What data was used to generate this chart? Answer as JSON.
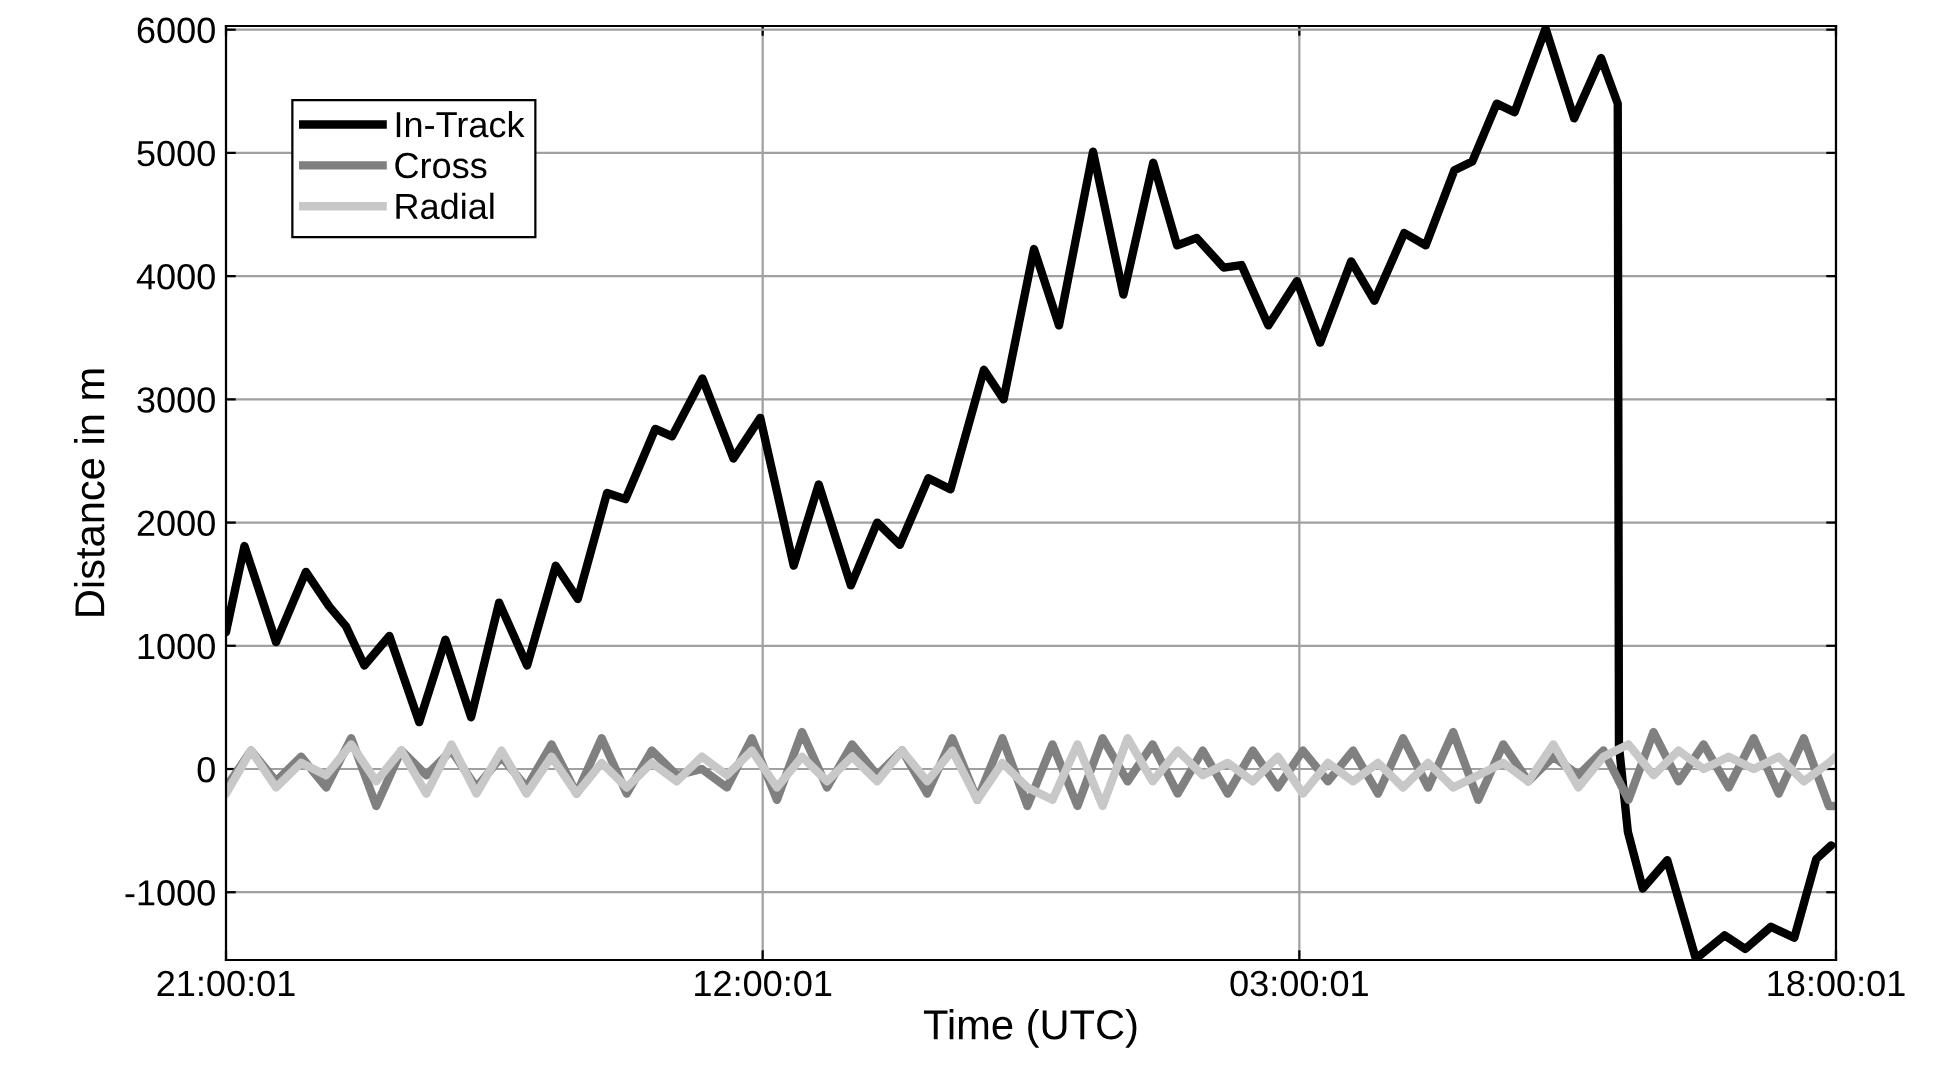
{
  "chart_data": {
    "type": "line",
    "xlabel": "Time (UTC)",
    "ylabel": "Distance in m",
    "xlim": [
      "2000-01-01T21:00:01",
      "2000-01-03T18:00:01"
    ],
    "xticks": [
      {
        "value": "2000-01-01T21:00:01",
        "label": "21:00:01"
      },
      {
        "value": "2000-01-02T12:00:01",
        "label": "12:00:01"
      },
      {
        "value": "2000-01-03T03:00:01",
        "label": "03:00:01"
      },
      {
        "value": "2000-01-03T18:00:01",
        "label": "18:00:01"
      }
    ],
    "ylim": [
      -1550,
      6030
    ],
    "yticks": [
      -1000,
      0,
      1000,
      2000,
      3000,
      4000,
      5000,
      6000
    ],
    "grid": true,
    "legend": "top left",
    "line_style": "solid",
    "marker": "none",
    "series": [
      {
        "name": "In-Track",
        "color": "#000000",
        "x": [
          "2000-01-01T21:00:01",
          "2000-01-01T21:31",
          "2000-01-01T22:24",
          "2000-01-01T23:14",
          "2000-01-01T23:53",
          "2000-01-02T00:21",
          "2000-01-02T00:52",
          "2000-01-02T01:34",
          "2000-01-02T02:24",
          "2000-01-02T03:08",
          "2000-01-02T03:51",
          "2000-01-02T04:38",
          "2000-01-02T05:25",
          "2000-01-02T06:13",
          "2000-01-02T06:50",
          "2000-01-02T07:39",
          "2000-01-02T08:10",
          "2000-01-02T09:00",
          "2000-01-02T09:28",
          "2000-01-02T10:19",
          "2000-01-02T11:11",
          "2000-01-02T11:56",
          "2000-01-02T12:52",
          "2000-01-02T13:34",
          "2000-01-02T14:28",
          "2000-01-02T15:12",
          "2000-01-02T15:50",
          "2000-01-02T16:38",
          "2000-01-02T17:15",
          "2000-01-02T18:11",
          "2000-01-02T18:44",
          "2000-01-02T19:35",
          "2000-01-02T20:17",
          "2000-01-02T21:14",
          "2000-01-02T22:05",
          "2000-01-02T22:55",
          "2000-01-02T23:35",
          "2000-01-03T00:08",
          "2000-01-03T00:53",
          "2000-01-03T01:23",
          "2000-01-03T02:08",
          "2000-01-03T02:56",
          "2000-01-03T03:35",
          "2000-01-03T04:27",
          "2000-01-03T05:06",
          "2000-01-03T05:56",
          "2000-01-03T06:32",
          "2000-01-03T07:20",
          "2000-01-03T07:50",
          "2000-01-03T08:31",
          "2000-01-03T09:01",
          "2000-01-03T09:53",
          "2000-01-03T10:41",
          "2000-01-03T11:26",
          "2000-01-03T11:54",
          "2000-01-03T11:56",
          "2000-01-03T12:11",
          "2000-01-03T12:36",
          "2000-01-03T13:17",
          "2000-01-03T14:05",
          "2000-01-03T14:53",
          "2000-01-03T15:28",
          "2000-01-03T16:11",
          "2000-01-03T16:50",
          "2000-01-03T17:27",
          "2000-01-03T17:52"
        ],
        "values": [
          1110,
          1810,
          1030,
          1600,
          1320,
          1160,
          840,
          1080,
          380,
          1050,
          420,
          1350,
          840,
          1650,
          1380,
          2240,
          2190,
          2760,
          2700,
          3170,
          2520,
          2850,
          1650,
          2310,
          1490,
          2000,
          1820,
          2360,
          2270,
          3240,
          3000,
          4220,
          3600,
          5010,
          3850,
          4920,
          4250,
          4310,
          4070,
          4090,
          3600,
          3960,
          3460,
          4120,
          3800,
          4350,
          4250,
          4860,
          4930,
          5400,
          5330,
          6010,
          5280,
          5770,
          5400,
          190,
          -510,
          -970,
          -740,
          -1540,
          -1350,
          -1460,
          -1280,
          -1370,
          -730,
          -620
        ]
      },
      {
        "name": "Cross",
        "color": "#808080",
        "x": [
          "2000-01-01T21:00:01",
          "2000-01-01T21:42",
          "2000-01-01T22:24",
          "2000-01-01T23:06",
          "2000-01-01T23:48",
          "2000-01-02T00:30",
          "2000-01-02T01:12",
          "2000-01-02T01:54",
          "2000-01-02T02:36",
          "2000-01-02T03:18",
          "2000-01-02T04:00",
          "2000-01-02T04:42",
          "2000-01-02T05:24",
          "2000-01-02T06:06",
          "2000-01-02T06:48",
          "2000-01-02T07:30",
          "2000-01-02T08:12",
          "2000-01-02T08:54",
          "2000-01-02T09:36",
          "2000-01-02T10:18",
          "2000-01-02T11:00",
          "2000-01-02T11:42",
          "2000-01-02T12:24",
          "2000-01-02T13:06",
          "2000-01-02T13:48",
          "2000-01-02T14:30",
          "2000-01-02T15:12",
          "2000-01-02T15:54",
          "2000-01-02T16:36",
          "2000-01-02T17:18",
          "2000-01-02T18:00",
          "2000-01-02T18:42",
          "2000-01-02T19:24",
          "2000-01-02T20:06",
          "2000-01-02T20:48",
          "2000-01-02T21:30",
          "2000-01-02T22:12",
          "2000-01-02T22:54",
          "2000-01-02T23:36",
          "2000-01-03T00:18",
          "2000-01-03T01:00",
          "2000-01-03T01:42",
          "2000-01-03T02:24",
          "2000-01-03T03:06",
          "2000-01-03T03:48",
          "2000-01-03T04:30",
          "2000-01-03T05:12",
          "2000-01-03T05:54",
          "2000-01-03T06:36",
          "2000-01-03T07:18",
          "2000-01-03T08:00",
          "2000-01-03T08:42",
          "2000-01-03T09:24",
          "2000-01-03T10:06",
          "2000-01-03T10:48",
          "2000-01-03T11:30",
          "2000-01-03T12:12",
          "2000-01-03T12:54",
          "2000-01-03T13:36",
          "2000-01-03T14:18",
          "2000-01-03T15:00",
          "2000-01-03T15:42",
          "2000-01-03T16:24",
          "2000-01-03T17:06",
          "2000-01-03T17:48",
          "2000-01-03T18:00"
        ],
        "values": [
          -150,
          150,
          -100,
          100,
          -150,
          250,
          -300,
          150,
          -50,
          150,
          -150,
          100,
          -150,
          200,
          -200,
          250,
          -200,
          150,
          -50,
          0,
          -150,
          250,
          -250,
          300,
          -150,
          200,
          -50,
          150,
          -200,
          250,
          -250,
          250,
          -300,
          200,
          -300,
          250,
          -100,
          200,
          -200,
          150,
          -200,
          150,
          -150,
          150,
          -100,
          150,
          -200,
          250,
          -150,
          300,
          -250,
          200,
          -100,
          100,
          -50,
          150,
          -250,
          300,
          -100,
          200,
          -150,
          250,
          -200,
          250,
          -300,
          -300
        ]
      },
      {
        "name": "Radial",
        "color": "#c8c8c8",
        "x": [
          "2000-01-01T21:00:01",
          "2000-01-01T21:42",
          "2000-01-01T22:24",
          "2000-01-01T23:06",
          "2000-01-01T23:48",
          "2000-01-02T00:30",
          "2000-01-02T01:12",
          "2000-01-02T01:54",
          "2000-01-02T02:36",
          "2000-01-02T03:18",
          "2000-01-02T04:00",
          "2000-01-02T04:42",
          "2000-01-02T05:24",
          "2000-01-02T06:06",
          "2000-01-02T06:48",
          "2000-01-02T07:30",
          "2000-01-02T08:12",
          "2000-01-02T08:54",
          "2000-01-02T09:36",
          "2000-01-02T10:18",
          "2000-01-02T11:00",
          "2000-01-02T11:42",
          "2000-01-02T12:24",
          "2000-01-02T13:06",
          "2000-01-02T13:48",
          "2000-01-02T14:30",
          "2000-01-02T15:12",
          "2000-01-02T15:54",
          "2000-01-02T16:36",
          "2000-01-02T17:18",
          "2000-01-02T18:00",
          "2000-01-02T18:42",
          "2000-01-02T19:24",
          "2000-01-02T20:06",
          "2000-01-02T20:48",
          "2000-01-02T21:30",
          "2000-01-02T22:12",
          "2000-01-02T22:54",
          "2000-01-02T23:36",
          "2000-01-03T00:18",
          "2000-01-03T01:00",
          "2000-01-03T01:42",
          "2000-01-03T02:24",
          "2000-01-03T03:06",
          "2000-01-03T03:48",
          "2000-01-03T04:30",
          "2000-01-03T05:12",
          "2000-01-03T05:54",
          "2000-01-03T06:36",
          "2000-01-03T07:18",
          "2000-01-03T08:00",
          "2000-01-03T08:42",
          "2000-01-03T09:24",
          "2000-01-03T10:06",
          "2000-01-03T10:48",
          "2000-01-03T11:30",
          "2000-01-03T12:12",
          "2000-01-03T12:54",
          "2000-01-03T13:36",
          "2000-01-03T14:18",
          "2000-01-03T15:00",
          "2000-01-03T15:42",
          "2000-01-03T16:24",
          "2000-01-03T17:06",
          "2000-01-03T17:48",
          "2000-01-03T18:00"
        ],
        "values": [
          -200,
          150,
          -150,
          50,
          -50,
          200,
          -100,
          150,
          -200,
          200,
          -200,
          150,
          -200,
          100,
          -200,
          50,
          -150,
          50,
          -100,
          100,
          -50,
          150,
          -150,
          100,
          -100,
          100,
          -100,
          150,
          -100,
          150,
          -250,
          50,
          -150,
          -250,
          200,
          -300,
          250,
          -100,
          150,
          -50,
          50,
          -100,
          100,
          -200,
          50,
          -100,
          50,
          -150,
          50,
          -150,
          -50,
          50,
          -100,
          200,
          -150,
          100,
          200,
          -50,
          150,
          0,
          100,
          0,
          100,
          -100,
          50,
          100
        ]
      }
    ]
  }
}
